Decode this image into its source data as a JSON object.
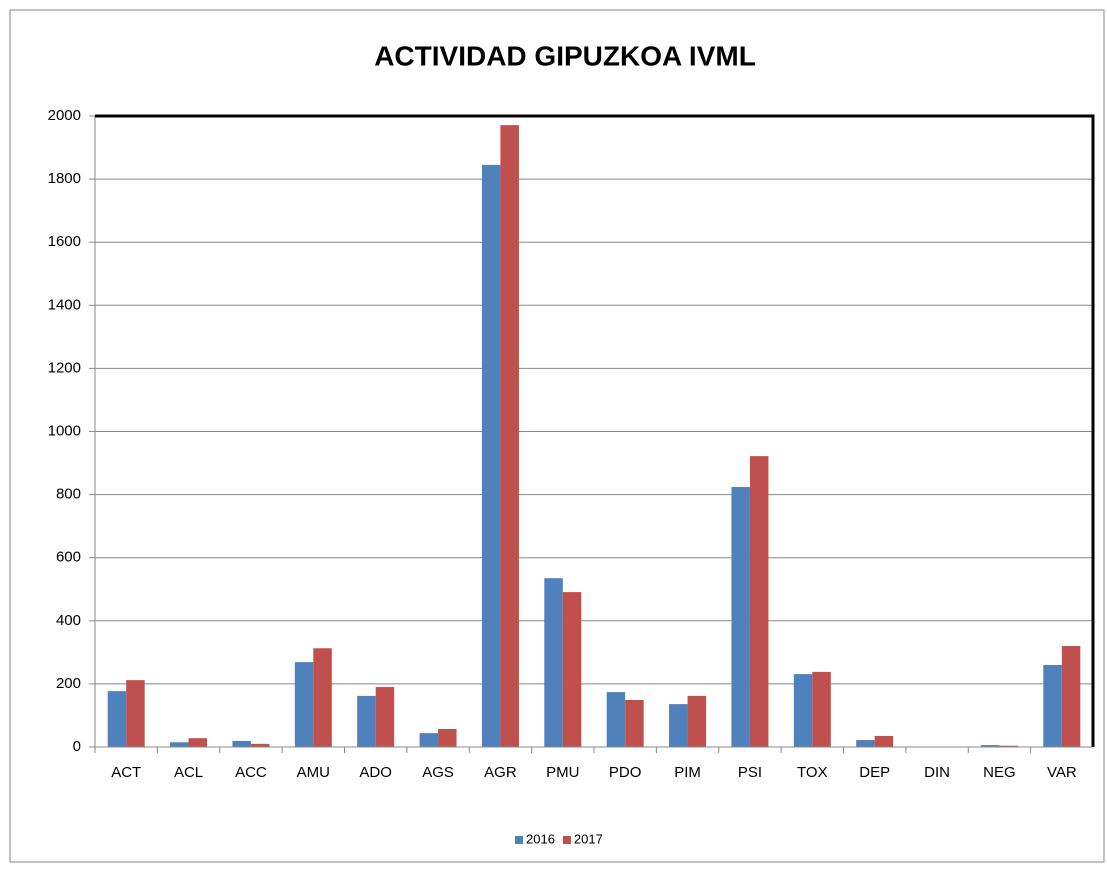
{
  "chart_data": {
    "type": "bar",
    "title": "ACTIVIDAD GIPUZKOA IVML",
    "categories": [
      "ACT",
      "ACL",
      "ACC",
      "AMU",
      "ADO",
      "AGS",
      "AGR",
      "PMU",
      "PDO",
      "PIM",
      "PSI",
      "TOX",
      "DEP",
      "DIN",
      "NEG",
      "VAR"
    ],
    "series": [
      {
        "name": "2016",
        "color": "#4f81bd",
        "values": [
          177,
          15,
          19,
          269,
          162,
          44,
          1845,
          535,
          174,
          136,
          824,
          231,
          22,
          1,
          6,
          260
        ]
      },
      {
        "name": "2017",
        "color": "#c0504d",
        "values": [
          212,
          28,
          10,
          313,
          190,
          57,
          1971,
          491,
          149,
          162,
          922,
          238,
          35,
          1,
          4,
          320
        ]
      }
    ],
    "ylim": [
      0,
      2000
    ],
    "yticks": [
      0,
      200,
      400,
      600,
      800,
      1000,
      1200,
      1400,
      1600,
      1800,
      2000
    ],
    "grid": true,
    "legend": "bottom"
  }
}
